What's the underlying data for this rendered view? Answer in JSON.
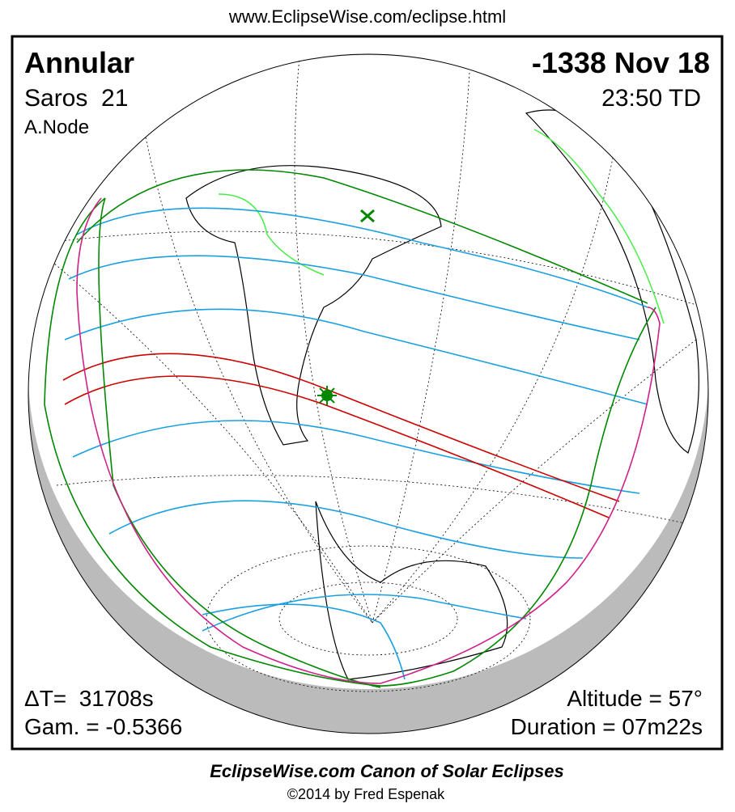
{
  "header": {
    "url": "www.EclipseWise.com/eclipse.html"
  },
  "eclipse": {
    "type": "Annular",
    "date": "-1338 Nov 18",
    "saros": "Saros  21",
    "time": "23:50 TD",
    "node": "A.Node",
    "delta_t": "ΔT=  31708s",
    "gamma": "Gam. = -0.5366",
    "altitude": "Altitude = 57°",
    "duration": "Duration = 07m22s"
  },
  "footer": {
    "title": "EclipseWise.com Canon of Solar Eclipses",
    "credit": "©2014 by Fred Espenak"
  }
}
